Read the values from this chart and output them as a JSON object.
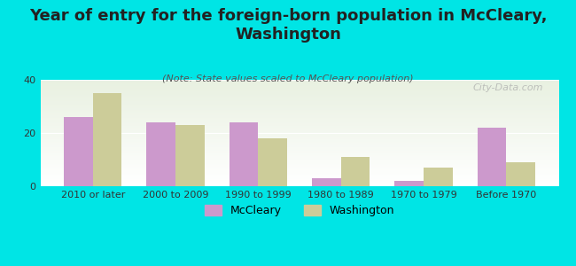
{
  "title": "Year of entry for the foreign-born population in McCleary,\nWashington",
  "subtitle": "(Note: State values scaled to McCleary population)",
  "categories": [
    "2010 or later",
    "2000 to 2009",
    "1990 to 1999",
    "1980 to 1989",
    "1970 to 1979",
    "Before 1970"
  ],
  "mccleary_values": [
    26,
    24,
    24,
    3,
    2,
    22
  ],
  "washington_values": [
    35,
    23,
    18,
    11,
    7,
    9
  ],
  "mccleary_color": "#cc99cc",
  "washington_color": "#cccc99",
  "background_color": "#00e5e5",
  "plot_bg_start": "#ffffff",
  "plot_bg_end": "#e8f0e0",
  "ylim": [
    0,
    40
  ],
  "yticks": [
    0,
    20,
    40
  ],
  "bar_width": 0.35,
  "title_fontsize": 13,
  "subtitle_fontsize": 8,
  "tick_fontsize": 8,
  "legend_fontsize": 9,
  "watermark": "City-Data.com"
}
